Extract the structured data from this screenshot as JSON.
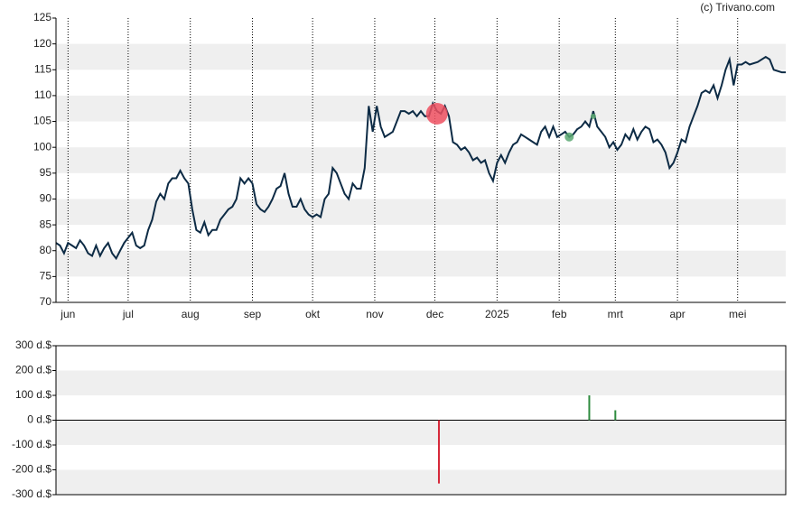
{
  "credit": "(c) Trivano.com",
  "chart_data": [
    {
      "type": "line",
      "color": "#0d2b45",
      "xlim": [
        -6,
        358
      ],
      "xticks": [
        {
          "value": 0,
          "label": "jun"
        },
        {
          "value": 30,
          "label": "jul"
        },
        {
          "value": 61,
          "label": "aug"
        },
        {
          "value": 92,
          "label": "sep"
        },
        {
          "value": 122,
          "label": "okt"
        },
        {
          "value": 153,
          "label": "nov"
        },
        {
          "value": 183,
          "label": "dec"
        },
        {
          "value": 214,
          "label": "2025"
        },
        {
          "value": 245,
          "label": "feb"
        },
        {
          "value": 273,
          "label": "mrt"
        },
        {
          "value": 304,
          "label": "apr"
        },
        {
          "value": 334,
          "label": "mei"
        }
      ],
      "ylim": [
        70,
        125
      ],
      "yticks": [
        70,
        75,
        80,
        85,
        90,
        95,
        100,
        105,
        110,
        115,
        120,
        125
      ],
      "x": [
        -6,
        -4,
        -2,
        0,
        2,
        4,
        6,
        8,
        10,
        12,
        14,
        16,
        18,
        20,
        22,
        24,
        26,
        28,
        30,
        32,
        34,
        36,
        38,
        40,
        42,
        44,
        46,
        48,
        50,
        52,
        54,
        56,
        58,
        60,
        62,
        64,
        66,
        68,
        70,
        72,
        74,
        76,
        78,
        80,
        82,
        84,
        86,
        88,
        90,
        92,
        94,
        96,
        98,
        100,
        102,
        104,
        106,
        108,
        110,
        112,
        114,
        116,
        118,
        120,
        122,
        124,
        126,
        128,
        130,
        132,
        134,
        136,
        138,
        140,
        142,
        144,
        146,
        148,
        150,
        152,
        154,
        156,
        158,
        160,
        162,
        164,
        166,
        168,
        170,
        172,
        174,
        176,
        178,
        180,
        182,
        184,
        186,
        188,
        190,
        192,
        194,
        196,
        198,
        200,
        202,
        204,
        206,
        208,
        210,
        212,
        214,
        216,
        218,
        220,
        222,
        224,
        226,
        228,
        230,
        232,
        234,
        236,
        238,
        240,
        242,
        244,
        246,
        248,
        250,
        252,
        254,
        256,
        258,
        260,
        262,
        264,
        266,
        268,
        270,
        272,
        274,
        276,
        278,
        280,
        282,
        284,
        286,
        288,
        290,
        292,
        294,
        296,
        298,
        300,
        302,
        304,
        306,
        308,
        310,
        312,
        314,
        316,
        318,
        320,
        322,
        324,
        326,
        328,
        330,
        332,
        334,
        336,
        338,
        340,
        344,
        348,
        350,
        352,
        356,
        358
      ],
      "values": [
        81.5,
        81,
        79.5,
        81.5,
        81,
        80.5,
        82,
        81,
        79.5,
        79,
        81,
        79,
        80.5,
        81.5,
        79.5,
        78.5,
        80,
        81.5,
        82.5,
        83.5,
        81,
        80.5,
        81,
        84,
        86,
        89.5,
        91,
        90,
        93,
        94,
        94,
        95.5,
        94,
        93,
        88,
        84,
        83.5,
        85.5,
        83,
        84,
        84,
        86,
        87,
        88,
        88.5,
        90,
        94,
        93,
        94,
        93,
        89,
        88,
        87.5,
        88.5,
        90,
        92,
        92.5,
        95,
        91,
        88.5,
        88.5,
        90,
        88,
        87,
        86.5,
        87,
        86.5,
        90,
        91,
        96,
        95,
        93,
        91,
        90,
        93,
        92,
        92,
        96,
        108,
        103,
        108,
        104,
        102,
        102.5,
        103,
        105,
        107,
        107,
        106.5,
        107,
        106,
        107,
        106,
        106,
        108.5,
        107,
        106.5,
        108,
        106,
        101,
        100.5,
        99.5,
        100,
        99,
        97.5,
        98,
        97,
        97.5,
        95,
        93.5,
        97,
        98.5,
        97,
        99,
        100.5,
        101,
        102.5,
        102,
        101.5,
        101,
        100.5,
        103,
        104,
        102,
        104,
        102,
        102.5,
        103,
        102,
        102.5,
        103.5,
        104,
        105,
        104,
        107,
        104,
        103,
        102,
        100,
        101,
        99.5,
        100.5,
        102.5,
        101.5,
        103.5,
        101.5,
        103,
        104,
        103.5,
        101,
        101.5,
        100.5,
        99,
        96,
        97,
        99,
        101.5,
        101,
        104,
        106,
        108,
        110.5,
        111,
        110.5,
        112,
        109.5,
        112,
        115,
        117,
        112,
        116,
        116,
        116.5,
        116,
        116.5,
        117.5,
        117,
        115,
        114.5,
        114.5
      ],
      "markers": [
        {
          "x": 184,
          "y": 106.5,
          "color": "#ee5060",
          "size": 12
        },
        {
          "x": 250,
          "y": 102,
          "color": "#5aa872",
          "size": 5
        },
        {
          "x": 262,
          "y": 106,
          "color": "#5aa872",
          "size": 3
        }
      ]
    },
    {
      "type": "bar",
      "xlim": [
        -6,
        358
      ],
      "ylim": [
        -300,
        300
      ],
      "yticks": [
        {
          "value": -300,
          "label": "-300 d.$"
        },
        {
          "value": -200,
          "label": "-200 d.$"
        },
        {
          "value": -100,
          "label": "-100 d.$"
        },
        {
          "value": 0,
          "label": "0 d.$"
        },
        {
          "value": 100,
          "label": "100 d.$"
        },
        {
          "value": 200,
          "label": "200 d.$"
        },
        {
          "value": 300,
          "label": "300 d.$"
        }
      ],
      "x": [
        185,
        260,
        273
      ],
      "values": [
        -255,
        100,
        40
      ],
      "colors": [
        "#d62738",
        "#2e8b3e",
        "#2e8b3e"
      ]
    }
  ]
}
